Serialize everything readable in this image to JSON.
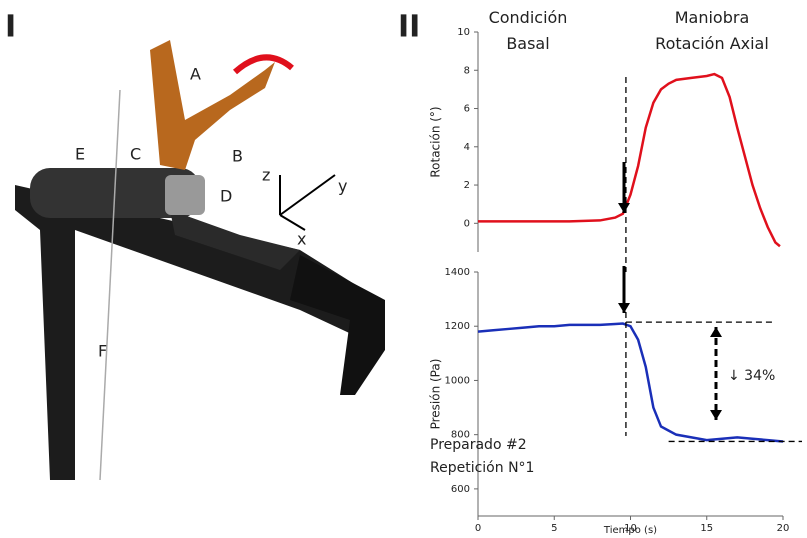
{
  "panel_labels": [
    "I",
    "II"
  ],
  "photo_labels": [
    "A",
    "B",
    "C",
    "D",
    "E",
    "F",
    "z",
    "y",
    "x"
  ],
  "chart_data": [
    {
      "type": "line",
      "annotations": [
        "Condición Basal",
        "Maniobra Rotación Axial"
      ],
      "ylabel": "Rotación (°)",
      "x": [
        0,
        2,
        4,
        6,
        8,
        9,
        9.5,
        10,
        10.5,
        11,
        11.5,
        12,
        12.5,
        13,
        14,
        15,
        15.5,
        16,
        16.5,
        17,
        17.5,
        18,
        18.5,
        19,
        19.5,
        19.8
      ],
      "values": [
        0.1,
        0.1,
        0.1,
        0.1,
        0.15,
        0.3,
        0.5,
        1.5,
        3,
        5,
        6.3,
        7,
        7.3,
        7.5,
        7.6,
        7.7,
        7.8,
        7.6,
        6.6,
        5,
        3.5,
        2,
        0.8,
        -0.2,
        -1,
        -1.2
      ],
      "color": "#e0101c",
      "xlim": [
        0,
        20
      ],
      "ylim": [
        -1.5,
        10
      ],
      "yticks": [
        0,
        2,
        4,
        6,
        8,
        10
      ],
      "reference_lines": [
        {
          "axis": "x",
          "value": 9.7
        }
      ]
    },
    {
      "type": "line",
      "annotations": [
        "↓ 34%",
        "Preparado #2",
        "Repetición N°1"
      ],
      "xlabel": "Tiempo (s)",
      "ylabel": "Presión (Pa)",
      "x": [
        0,
        1,
        2,
        3,
        4,
        5,
        6,
        7,
        8,
        9,
        9.5,
        10,
        10.5,
        11,
        11.5,
        12,
        12.5,
        13,
        14,
        15,
        16,
        17,
        18,
        19,
        20
      ],
      "values": [
        1180,
        1185,
        1190,
        1195,
        1200,
        1200,
        1205,
        1205,
        1205,
        1208,
        1210,
        1200,
        1150,
        1050,
        900,
        830,
        815,
        800,
        790,
        780,
        785,
        790,
        785,
        780,
        775
      ],
      "color": "#1a2fb8",
      "xlim": [
        0,
        20
      ],
      "ylim": [
        500,
        1400
      ],
      "xticks": [
        0,
        5,
        10,
        15,
        20
      ],
      "yticks": [
        600,
        800,
        1000,
        1200,
        1400
      ],
      "reference_lines": [
        {
          "axis": "x",
          "value": 9.7
        },
        {
          "axis": "y",
          "value": 1215
        },
        {
          "axis": "y",
          "value": 775
        }
      ]
    }
  ]
}
